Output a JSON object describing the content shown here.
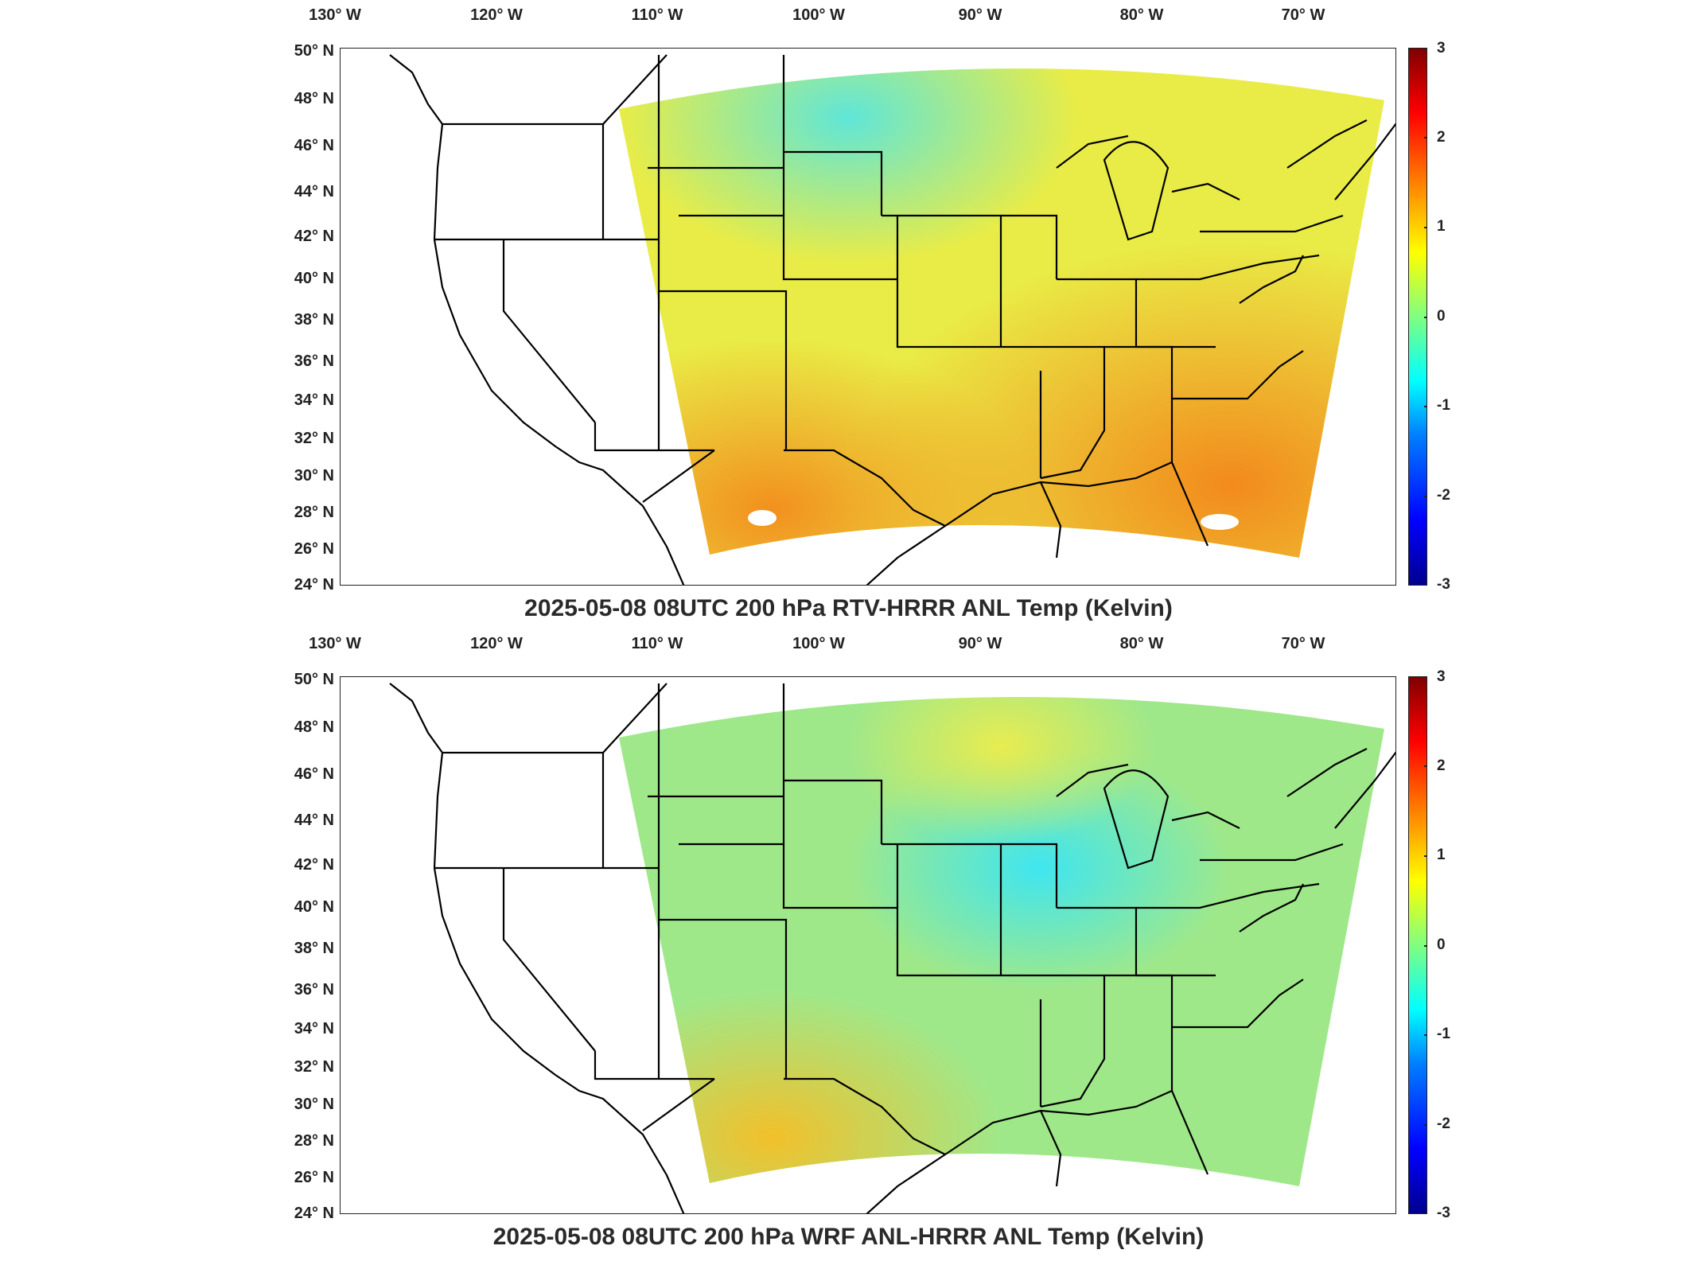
{
  "panels": [
    {
      "id": "top",
      "title": "2025-05-08 08UTC 200 hPa RTV-HRRR ANL Temp (Kelvin)",
      "lon_labels": [
        "130° W",
        "120° W",
        "110° W",
        "100° W",
        "90° W",
        "80° W",
        "70° W"
      ],
      "lat_labels": [
        "50° N",
        "48° N",
        "46° N",
        "44° N",
        "42° N",
        "40° N",
        "38° N",
        "36° N",
        "34° N",
        "32° N",
        "30° N",
        "28° N",
        "26° N",
        "24° N"
      ],
      "colorbar_ticks": [
        "3",
        "2",
        "1",
        "0",
        "-1",
        "-2",
        "-3"
      ],
      "field_tint": "#f2ee3c"
    },
    {
      "id": "bottom",
      "title": "2025-05-08 08UTC 200 hPa WRF ANL-HRRR ANL Temp (Kelvin)",
      "lon_labels": [
        "130° W",
        "120° W",
        "110° W",
        "100° W",
        "90° W",
        "80° W",
        "70° W"
      ],
      "lat_labels": [
        "50° N",
        "48° N",
        "46° N",
        "44° N",
        "42° N",
        "40° N",
        "38° N",
        "36° N",
        "34° N",
        "32° N",
        "30° N",
        "28° N",
        "26° N",
        "24° N"
      ],
      "colorbar_ticks": [
        "3",
        "2",
        "1",
        "0",
        "-1",
        "-2",
        "-3"
      ],
      "field_tint": "#9ee88c"
    }
  ],
  "colorbar": {
    "min": -3,
    "max": 3,
    "colormap": "jet"
  },
  "colors": {
    "frame": "#222222",
    "border_lines": "#000000"
  }
}
